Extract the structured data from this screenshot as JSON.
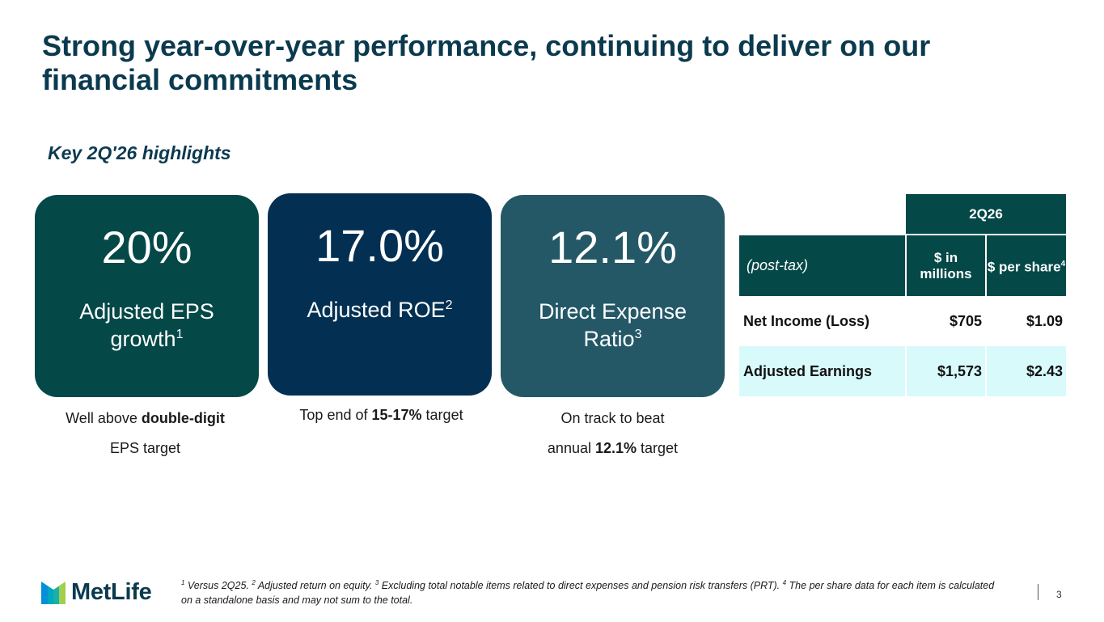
{
  "slide": {
    "title": "Strong year-over-year performance, continuing to deliver on our financial commitments",
    "subtitle": "Key 2Q'26 highlights",
    "page_number": "3"
  },
  "cards": [
    {
      "value": "20%",
      "label_line1": "Adjusted EPS",
      "label_line2": "growth",
      "sup": "1",
      "color": "#044848",
      "note_pre": "Well above ",
      "note_bold": "double-digit",
      "note_post": "",
      "note_line2": "EPS target"
    },
    {
      "value": "17.0%",
      "label_line1": "Adjusted ROE",
      "sup": "2",
      "color": "#033052",
      "note_pre": "Top end of ",
      "note_bold": "15-17%",
      "note_post": " target"
    },
    {
      "value": "12.1%",
      "label_line1": "Direct Expense",
      "label_line2": "Ratio",
      "sup": "3",
      "color": "#245867",
      "note_line1": "On track to beat",
      "note_pre": "annual ",
      "note_bold": "12.1%",
      "note_post": " target"
    }
  ],
  "table": {
    "period": "2Q26",
    "basis": "(post-tax)",
    "col_millions": "$ in millions",
    "col_per_share": "$ per share",
    "col_per_share_sup": "4",
    "rows": [
      {
        "label": "Net Income (Loss)",
        "millions": "$705",
        "per_share": "$1.09"
      },
      {
        "label": "Adjusted Earnings",
        "millions": "$1,573",
        "per_share": "$2.43"
      }
    ],
    "header_color": "#044848",
    "highlight_row_color": "#d8fafb"
  },
  "logo": {
    "text": "MetLife",
    "icon": "metlife-logo-icon"
  },
  "footnotes": {
    "f1_sup": "1",
    "f1": " Versus 2Q25. ",
    "f2_sup": "2",
    "f2": " Adjusted return on equity. ",
    "f3_sup": "3",
    "f3": " Excluding total notable items related to direct expenses and pension risk transfers (PRT). ",
    "f4_sup": "4",
    "f4": " The per share data for each item is calculated on a standalone basis and may not sum to the total."
  }
}
